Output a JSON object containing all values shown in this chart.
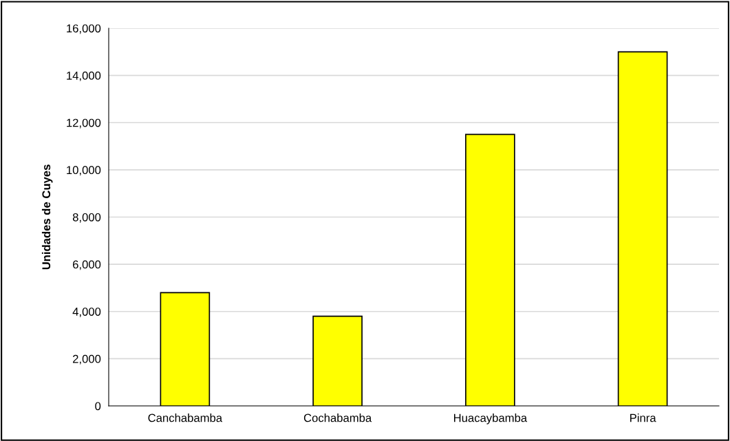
{
  "chart_data": {
    "type": "bar",
    "ylabel": "Unidades de Cuyes",
    "categories": [
      "Canchabamba",
      "Cochabamba",
      "Huacaybamba",
      "Pinra"
    ],
    "values": [
      4800,
      3800,
      11500,
      15000
    ],
    "color": "#ffff00",
    "ylim": [
      0,
      16000
    ],
    "yticks": [
      {
        "value": 0,
        "label": "0"
      },
      {
        "value": 2000,
        "label": "2,000"
      },
      {
        "value": 4000,
        "label": "4,000"
      },
      {
        "value": 6000,
        "label": "6,000"
      },
      {
        "value": 8000,
        "label": "8,000"
      },
      {
        "value": 10000,
        "label": "10,000"
      },
      {
        "value": 12000,
        "label": "12,000"
      },
      {
        "value": 14000,
        "label": "14,000"
      },
      {
        "value": 16000,
        "label": "16,000"
      }
    ],
    "grid": "y",
    "legend": false
  }
}
